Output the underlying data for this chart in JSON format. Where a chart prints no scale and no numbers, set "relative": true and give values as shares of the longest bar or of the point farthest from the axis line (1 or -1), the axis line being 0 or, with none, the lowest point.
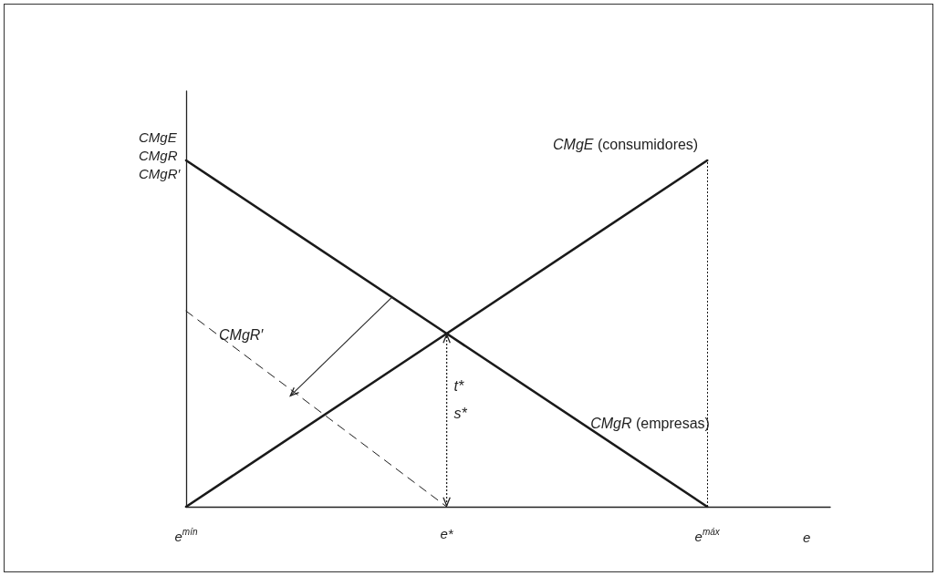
{
  "chart_data": {
    "type": "line",
    "relative": true,
    "ylabel": "CMgE\nCMgR\nCMgR′",
    "xlabel": "e",
    "categories": [
      "e$^{mín}$",
      "e*",
      "e$^{máx}$"
    ],
    "series": [
      {
        "name": "CMgE (consumidores)",
        "color": "#1a1a1a",
        "values": [
          0,
          0.5,
          1
        ]
      },
      {
        "name": "CMgR (empresas)",
        "color": "#1a1a1a",
        "values": [
          1,
          0.5,
          0
        ]
      },
      {
        "name": "CMgR′",
        "color": "#1a1a1a",
        "values": [
          0.565,
          0,
          null
        ],
        "line_style": "dashed"
      }
    ],
    "ref_lines": [
      {
        "axis": "x",
        "value": "e$^{máx}$",
        "line_style": "dotted",
        "color": "#1a1a1a"
      }
    ],
    "annotations": [
      "t*",
      "s*"
    ],
    "grid": false,
    "legend": false,
    "marker": "none"
  }
}
